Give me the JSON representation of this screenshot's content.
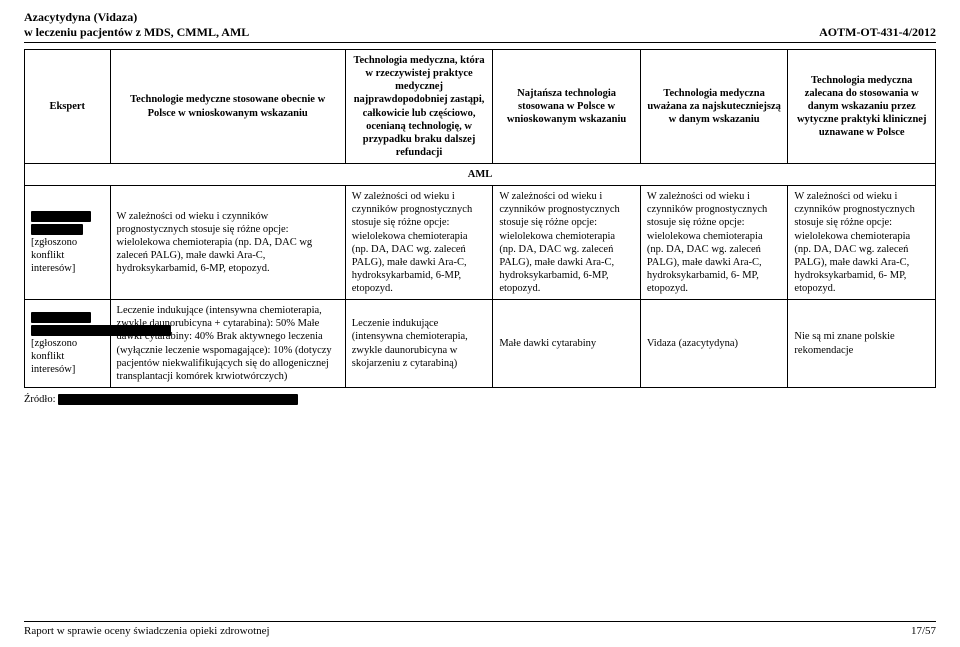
{
  "header": {
    "title_line1": "Azacytydyna (Vidaza)",
    "title_line2": "w leczeniu pacjentów z MDS, CMML, AML",
    "doc_code": "AOTM-OT-431-4/2012"
  },
  "table": {
    "headers": {
      "expert": "Ekspert",
      "col1": "Technologie medyczne stosowane obecnie w Polsce w wnioskowanym wskazaniu",
      "col2": "Technologia medyczna, która w rzeczywistej praktyce medycznej najprawdopodobniej zastąpi, całkowicie lub częściowo, ocenianą technologię, w przypadku braku dalszej refundacji",
      "col3": "Najtańsza technologia stosowana w Polsce w wnioskowanym wskazaniu",
      "col4": "Technologia medyczna uważana za najskuteczniejszą w danym wskazaniu",
      "col5": "Technologia medyczna zalecana do stosowania w danym wskazaniu przez wytyczne praktyki klinicznej uznawane w Polsce"
    },
    "section_label": "AML",
    "rows": [
      {
        "expert_suffix": "[zgłoszono konflikt interesów]",
        "c1": "W zależności od wieku i czynników prognostycznych stosuje się różne opcje: wielolekowa   chemioterapia (np. DA, DAC wg zaleceń PALG),  małe dawki Ara-C, hydroksykarbamid, 6-MP, etopozyd.",
        "c2": "W zależności od wieku i czynników prognostycznych stosuje się różne opcje: wielolekowa chemioterapia (np. DA, DAC wg. zaleceń PALG), małe dawki Ara-C, hydroksykarbamid, 6-MP, etopozyd.",
        "c3": "W zależności od wieku  i czynników prognostycznych stosuje się różne opcje: wielolekowa chemioterapia (np. DA, DAC wg. zaleceń PALG), małe dawki Ara-C, hydroksykarbamid, 6-MP, etopozyd.",
        "c4": "W zależności od wieku i czynników prognostycznych stosuje się różne opcje: wielolekowa chemioterapia (np. DA, DAC wg. zaleceń PALG),  małe dawki Ara-C, hydroksykarbamid, 6- MP, etopozyd.",
        "c5": "W zależności od wieku i czynników prognostycznych stosuje się różne opcje: wielolekowa chemioterapia (np. DA, DAC wg. zaleceń PALG),  małe dawki Ara-C, hydroksykarbamid, 6- MP, etopozyd."
      },
      {
        "expert_suffix": "[zgłoszono konflikt interesów]",
        "c1": "Leczenie indukujące (intensywna chemioterapia, zwykle daunorubicyna + cytarabina): 50%\nMałe dawki cytarabiny: 40%\nBrak aktywnego leczenia (wyłącznie leczenie wspomagające): 10% (dotyczy pacjentów niekwalifikujących się do allogenicznej transplantacji komórek krwiotwórczych)",
        "c2": "Leczenie indukujące (intensywna chemioterapia, zwykle daunorubicyna w skojarzeniu z cytarabiną)",
        "c3": "Małe dawki cytarabiny",
        "c4": "Vidaza (azacytydyna)",
        "c5": "Nie są mi znane polskie rekomendacje"
      }
    ],
    "source_label": "Źródło:"
  },
  "footer": {
    "left": "Raport w sprawie oceny świadczenia opieki zdrowotnej",
    "right": "17/57"
  }
}
